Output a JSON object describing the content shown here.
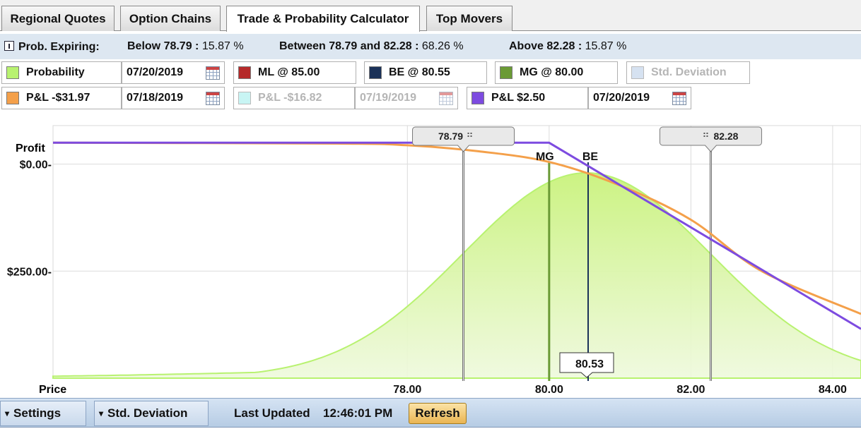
{
  "tabs": [
    {
      "label": "Regional Quotes"
    },
    {
      "label": "Option Chains"
    },
    {
      "label": "Trade & Probability Calculator"
    },
    {
      "label": "Top Movers"
    }
  ],
  "prob": {
    "label": "Prob. Expiring:",
    "below_label": "Below 78.79 :",
    "below_value": "15.87 %",
    "between_label": "Between 78.79  and 82.28 :",
    "between_value": "68.26 %",
    "above_label": "Above 82.28 :",
    "above_value": "15.87 %"
  },
  "legend_row1": {
    "probability": {
      "label": "Probability",
      "date": "07/20/2019",
      "color": "#b8f270"
    },
    "ml": {
      "label": "ML @ 85.00",
      "color": "#b52a2a"
    },
    "be": {
      "label": "BE @ 80.55",
      "color": "#1a3158"
    },
    "mg": {
      "label": "MG @ 80.00",
      "color": "#6a9a35"
    },
    "std": {
      "label": "Std. Deviation",
      "color": "#d6e2f1"
    }
  },
  "legend_row2": {
    "pl1": {
      "label": "P&L  -$31.97",
      "date": "07/18/2019",
      "color": "#f4a04a"
    },
    "pl2": {
      "label": "P&L  -$16.82",
      "date": "07/19/2019",
      "color": "#c8f5f4"
    },
    "pl3": {
      "label": "P&L  $2.50",
      "date": "07/20/2019",
      "color": "#7d4be0"
    }
  },
  "chart_data": {
    "type": "line",
    "ylabel": "Profit",
    "xlabel": "Price",
    "x_ticks": [
      "78.00",
      "80.00",
      "82.00",
      "84.00"
    ],
    "y_ticks": [
      "$0.00-",
      "$250.00-"
    ],
    "xlim": [
      73.0,
      84.4
    ],
    "ylim": [
      -500,
      90
    ],
    "markers": {
      "low": "78.79",
      "high": "82.28",
      "mg": "MG",
      "be": "BE",
      "price_readout": "80.53"
    },
    "marker_values": {
      "low": 78.79,
      "high": 82.28,
      "mg": 80.0,
      "be": 80.55,
      "cursor": 80.53
    },
    "series": [
      {
        "name": "P&L  $2.50",
        "color": "#7d4be0",
        "x": [
          73.0,
          80.0,
          84.4
        ],
        "y": [
          50,
          50,
          -385
        ]
      },
      {
        "name": "P&L  -$31.97",
        "color": "#f4a04a",
        "x": [
          73.0,
          77.0,
          78.0,
          79.0,
          80.0,
          81.0,
          82.0,
          83.0,
          84.4
        ],
        "y": [
          50,
          48,
          44,
          30,
          5,
          -50,
          -130,
          -250,
          -350
        ]
      },
      {
        "name": "Probability",
        "color": "#b8f270",
        "mean": 80.53,
        "sd": 1.745
      }
    ]
  },
  "bottom": {
    "settings": "Settings",
    "std": "Std. Deviation",
    "last_updated_label": "Last Updated",
    "time": "12:46:01 PM",
    "refresh": "Refresh"
  }
}
